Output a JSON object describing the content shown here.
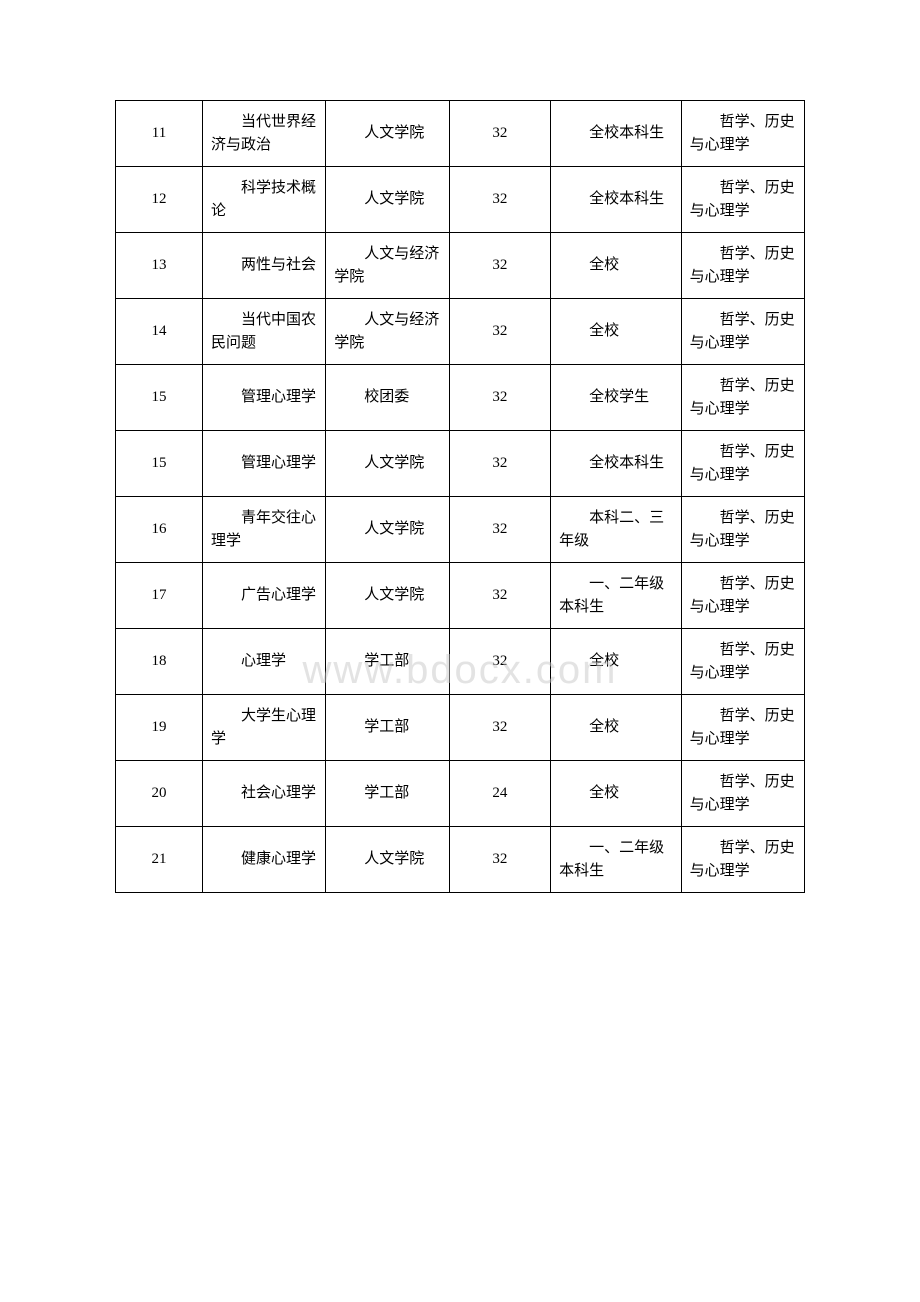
{
  "watermark": "www.bdocx.com",
  "table": {
    "columns": {
      "num_width": "12%",
      "course_width": "17%",
      "dept_width": "17%",
      "hours_width": "14%",
      "target_width": "18%",
      "category_width": "17%"
    },
    "rows": [
      {
        "num": "11",
        "course": "当代世界经济与政治",
        "dept": "人文学院",
        "hours": "32",
        "target": "全校本科生",
        "category": "哲学、历史与心理学"
      },
      {
        "num": "12",
        "course": "科学技术概论",
        "dept": "人文学院",
        "hours": "32",
        "target": "全校本科生",
        "category": "哲学、历史与心理学"
      },
      {
        "num": "13",
        "course": "两性与社会",
        "dept": "人文与经济学院",
        "hours": "32",
        "target": "全校",
        "category": "哲学、历史与心理学"
      },
      {
        "num": "14",
        "course": "当代中国农民问题",
        "dept": "人文与经济学院",
        "hours": "32",
        "target": "全校",
        "category": "哲学、历史与心理学"
      },
      {
        "num": "15",
        "course": "管理心理学",
        "dept": "校团委",
        "hours": "32",
        "target": "全校学生",
        "category": "哲学、历史与心理学"
      },
      {
        "num": "15",
        "course": "管理心理学",
        "dept": "人文学院",
        "hours": "32",
        "target": "全校本科生",
        "category": "哲学、历史与心理学"
      },
      {
        "num": "16",
        "course": "青年交往心理学",
        "dept": "人文学院",
        "hours": "32",
        "target": "本科二、三年级",
        "category": "哲学、历史与心理学"
      },
      {
        "num": "17",
        "course": "广告心理学",
        "dept": "人文学院",
        "hours": "32",
        "target": "一、二年级本科生",
        "category": "哲学、历史与心理学"
      },
      {
        "num": "18",
        "course": "心理学",
        "dept": "学工部",
        "hours": "32",
        "target": "全校",
        "category": "哲学、历史与心理学"
      },
      {
        "num": "19",
        "course": "大学生心理学",
        "dept": "学工部",
        "hours": "32",
        "target": "全校",
        "category": "哲学、历史与心理学"
      },
      {
        "num": "20",
        "course": "社会心理学",
        "dept": "学工部",
        "hours": "24",
        "target": "全校",
        "category": "哲学、历史与心理学"
      },
      {
        "num": "21",
        "course": "健康心理学",
        "dept": "人文学院",
        "hours": "32",
        "target": "一、二年级本科生",
        "category": "哲学、历史与心理学"
      }
    ]
  },
  "styling": {
    "font_family": "SimSun",
    "font_size": 15,
    "border_color": "#000000",
    "background_color": "#ffffff",
    "text_color": "#000000",
    "watermark_color": "rgba(200,200,200,0.5)",
    "watermark_fontsize": 40
  }
}
